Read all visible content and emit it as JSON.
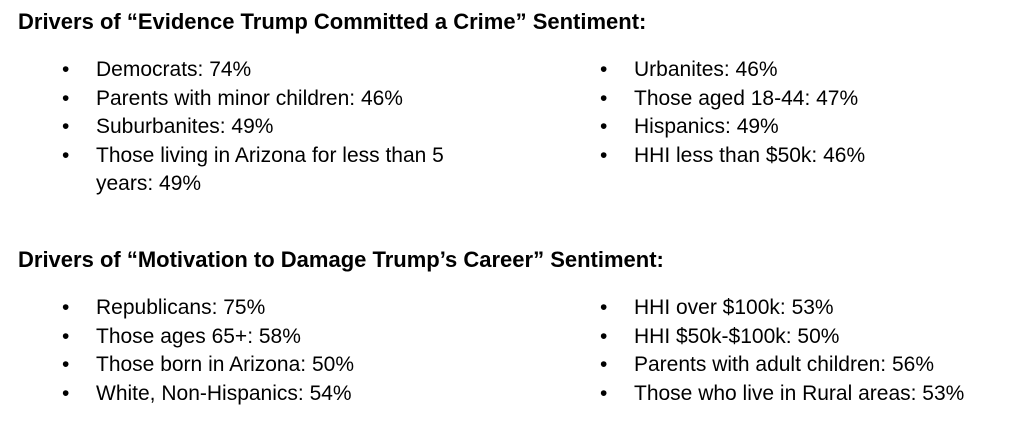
{
  "sections": [
    {
      "title": "Drivers of “Evidence Trump Committed a Crime” Sentiment:",
      "left": [
        "Democrats: 74%",
        "Parents with minor children: 46%",
        "Suburbanites: 49%",
        "Those living in Arizona for less than 5 years: 49%"
      ],
      "right": [
        "Urbanites: 46%",
        "Those aged 18-44: 47%",
        "Hispanics: 49%",
        "HHI less than $50k: 46%"
      ]
    },
    {
      "title": "Drivers of “Motivation to Damage Trump’s Career” Sentiment:",
      "left": [
        "Republicans: 75%",
        "Those ages 65+: 58%",
        "Those born in Arizona: 50%",
        "White, Non-Hispanics: 54%"
      ],
      "right": [
        "HHI over $100k: 53%",
        "HHI $50k-$100k: 50%",
        "Parents with adult children: 56%",
        "Those who live in Rural areas: 53%"
      ]
    }
  ]
}
